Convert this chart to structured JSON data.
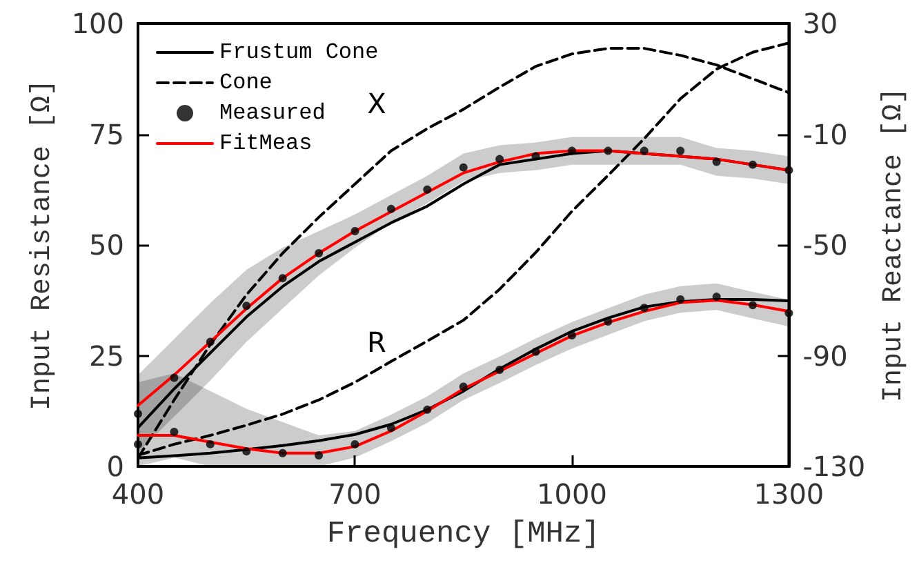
{
  "chart_data": {
    "type": "line",
    "xlabel": "Frequency [MHz]",
    "ylabel": "Input Resistance [Ω]",
    "y2label": "Input Reactance [Ω]",
    "x": [
      400,
      450,
      500,
      550,
      600,
      650,
      700,
      750,
      800,
      850,
      900,
      950,
      1000,
      1050,
      1100,
      1150,
      1200,
      1250,
      1300
    ],
    "xlim": [
      400,
      1300
    ],
    "xticks": [
      400,
      700,
      1000,
      1300
    ],
    "ylim": [
      0,
      100
    ],
    "yticks": [
      0,
      25,
      50,
      75,
      100
    ],
    "y2lim": [
      -130,
      30
    ],
    "y2ticks": [
      -130,
      -90,
      -50,
      -10,
      30
    ],
    "legend": "top left",
    "grid": false,
    "annotations": [
      "X",
      "R"
    ],
    "series": [
      {
        "name": "Frustum Cone",
        "line_style": "solid",
        "color": "#000000",
        "values": [
          1.9,
          2.4,
          3,
          3.8,
          4.7,
          5.8,
          7.2,
          9.5,
          12.8,
          17,
          22,
          26.5,
          30.5,
          33.5,
          36,
          37.2,
          37.7,
          37.7,
          37.4
        ]
      },
      {
        "line_style": "solid",
        "axis": "y2",
        "color": "#000000",
        "values": [
          -116,
          -102,
          -89,
          -76,
          -65,
          -56,
          -49,
          -42,
          -36,
          -28,
          -21,
          -19,
          -17,
          -16,
          -17,
          -18,
          -19,
          -21,
          -23
        ]
      },
      {
        "name": "Cone",
        "line_style": "dashed",
        "color": "#000000",
        "values": [
          2.5,
          5,
          7,
          9.3,
          11.8,
          15,
          19,
          23.7,
          28.3,
          33,
          40,
          48.3,
          57.6,
          65.7,
          74,
          83,
          89.7,
          93.5,
          95.6
        ]
      },
      {
        "line_style": "dashed",
        "axis": "y2",
        "color": "#000000",
        "values": [
          -127,
          -106,
          -86,
          -68,
          -53,
          -40,
          -28,
          -16,
          -8,
          -1,
          7,
          14.5,
          19,
          21,
          21,
          18.5,
          15,
          10,
          5
        ]
      },
      {
        "name": "Measured",
        "type": "scatter",
        "marker": "circle",
        "color": "#000000",
        "values": [
          5,
          7.8,
          5,
          3.4,
          3,
          2.5,
          5,
          8.7,
          12.8,
          18,
          21.8,
          25.9,
          29.6,
          32.7,
          35.8,
          37.7,
          38.3,
          36.4,
          34.6
        ],
        "lower": [
          0,
          2,
          0,
          0,
          0,
          0,
          2,
          5.7,
          9.8,
          15,
          18.8,
          22.9,
          26.6,
          29.7,
          32.8,
          34.7,
          35.3,
          33.4,
          31.6
        ],
        "upper": [
          19,
          21,
          17,
          13,
          10,
          7,
          8,
          11.7,
          15.8,
          21,
          24.8,
          28.9,
          32.6,
          35.7,
          38.8,
          40.7,
          41.3,
          39.4,
          37.6
        ]
      },
      {
        "type": "scatter",
        "marker": "circle",
        "axis": "y2",
        "color": "#000000",
        "values": [
          -111,
          -98,
          -85,
          -72,
          -62,
          -53,
          -45,
          -37,
          -30,
          -22,
          -19,
          -18,
          -16,
          -16,
          -16,
          -16,
          -20,
          -21,
          -23
        ],
        "lower": [
          -125,
          -112,
          -99,
          -85,
          -73,
          -61,
          -51,
          -42,
          -35,
          -27,
          -24,
          -23,
          -21,
          -21,
          -21,
          -21,
          -25,
          -26,
          -28
        ],
        "upper": [
          -97,
          -84,
          -71,
          -59,
          -51,
          -45,
          -39,
          -32,
          -25,
          -17,
          -14,
          -13,
          -11,
          -11,
          -11,
          -11,
          -15,
          -16,
          -18
        ]
      },
      {
        "name": "FitMeas",
        "line_style": "solid",
        "color": "#ff0000",
        "values": [
          7,
          7,
          5.5,
          4,
          3,
          3,
          4.5,
          8,
          12.5,
          17.5,
          21.5,
          25.5,
          29.5,
          32.5,
          35,
          37,
          37.5,
          36.5,
          35
        ]
      },
      {
        "line_style": "solid",
        "axis": "y2",
        "color": "#ff0000",
        "values": [
          -108,
          -97,
          -85,
          -73,
          -62,
          -53,
          -45,
          -38,
          -31,
          -24,
          -20,
          -17,
          -16,
          -16,
          -17,
          -18,
          -19,
          -21,
          -23
        ]
      }
    ]
  }
}
